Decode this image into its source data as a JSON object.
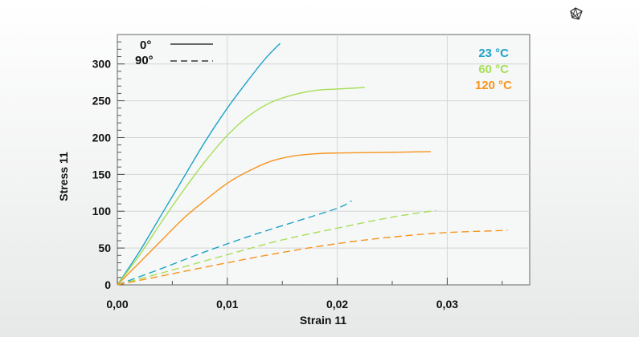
{
  "logo_icon": "mesh-logo-icon",
  "chart_data": {
    "type": "line",
    "title": "",
    "xlabel": "Strain 11",
    "ylabel": "Stress 11",
    "xlim": [
      0,
      0.0375
    ],
    "ylim": [
      0,
      340
    ],
    "x_ticks": [
      0,
      0.01,
      0.02,
      0.03
    ],
    "x_tick_labels": [
      "0,00",
      "0,01",
      "0,02",
      "0,03"
    ],
    "y_ticks": [
      0,
      50,
      100,
      150,
      200,
      250,
      300
    ],
    "y_tick_labels": [
      "0",
      "50",
      "100",
      "150",
      "200",
      "250",
      "300"
    ],
    "grid": true,
    "style_legend": [
      {
        "label": "0°",
        "style": "solid"
      },
      {
        "label": "90°",
        "style": "dashed"
      }
    ],
    "color_legend": [
      {
        "label": "23 °C",
        "color": "#1ea3c8"
      },
      {
        "label": "60 °C",
        "color": "#a6df55"
      },
      {
        "label": "120 °C",
        "color": "#f7941d"
      }
    ],
    "legend_position": "top-left and top-right",
    "series": [
      {
        "color": "#1ea3c8",
        "style": "solid",
        "x": [
          0,
          0.002,
          0.004,
          0.006,
          0.008,
          0.01,
          0.012,
          0.0135,
          0.0148
        ],
        "y": [
          0,
          45,
          95,
          145,
          195,
          240,
          280,
          308,
          328
        ]
      },
      {
        "color": "#a6df55",
        "style": "solid",
        "x": [
          0,
          0.002,
          0.004,
          0.006,
          0.008,
          0.01,
          0.012,
          0.014,
          0.016,
          0.018,
          0.02,
          0.0225
        ],
        "y": [
          0,
          40,
          85,
          128,
          168,
          203,
          230,
          248,
          258,
          264,
          266,
          268
        ]
      },
      {
        "color": "#f7941d",
        "style": "solid",
        "x": [
          0,
          0.002,
          0.004,
          0.006,
          0.008,
          0.01,
          0.012,
          0.014,
          0.016,
          0.018,
          0.02,
          0.025,
          0.0285
        ],
        "y": [
          0,
          30,
          60,
          90,
          115,
          138,
          155,
          168,
          175,
          178,
          179,
          180,
          181
        ]
      },
      {
        "color": "#1ea3c8",
        "style": "dashed",
        "x": [
          0,
          0.004,
          0.008,
          0.012,
          0.016,
          0.02,
          0.0213
        ],
        "y": [
          0,
          22,
          45,
          66,
          85,
          104,
          114
        ]
      },
      {
        "color": "#a6df55",
        "style": "dashed",
        "x": [
          0,
          0.005,
          0.01,
          0.015,
          0.02,
          0.025,
          0.029
        ],
        "y": [
          0,
          20,
          41,
          61,
          77,
          92,
          101
        ]
      },
      {
        "color": "#f7941d",
        "style": "dashed",
        "x": [
          0,
          0.005,
          0.01,
          0.015,
          0.02,
          0.025,
          0.03,
          0.0355
        ],
        "y": [
          0,
          15,
          30,
          44,
          56,
          65,
          71,
          74
        ]
      }
    ]
  }
}
